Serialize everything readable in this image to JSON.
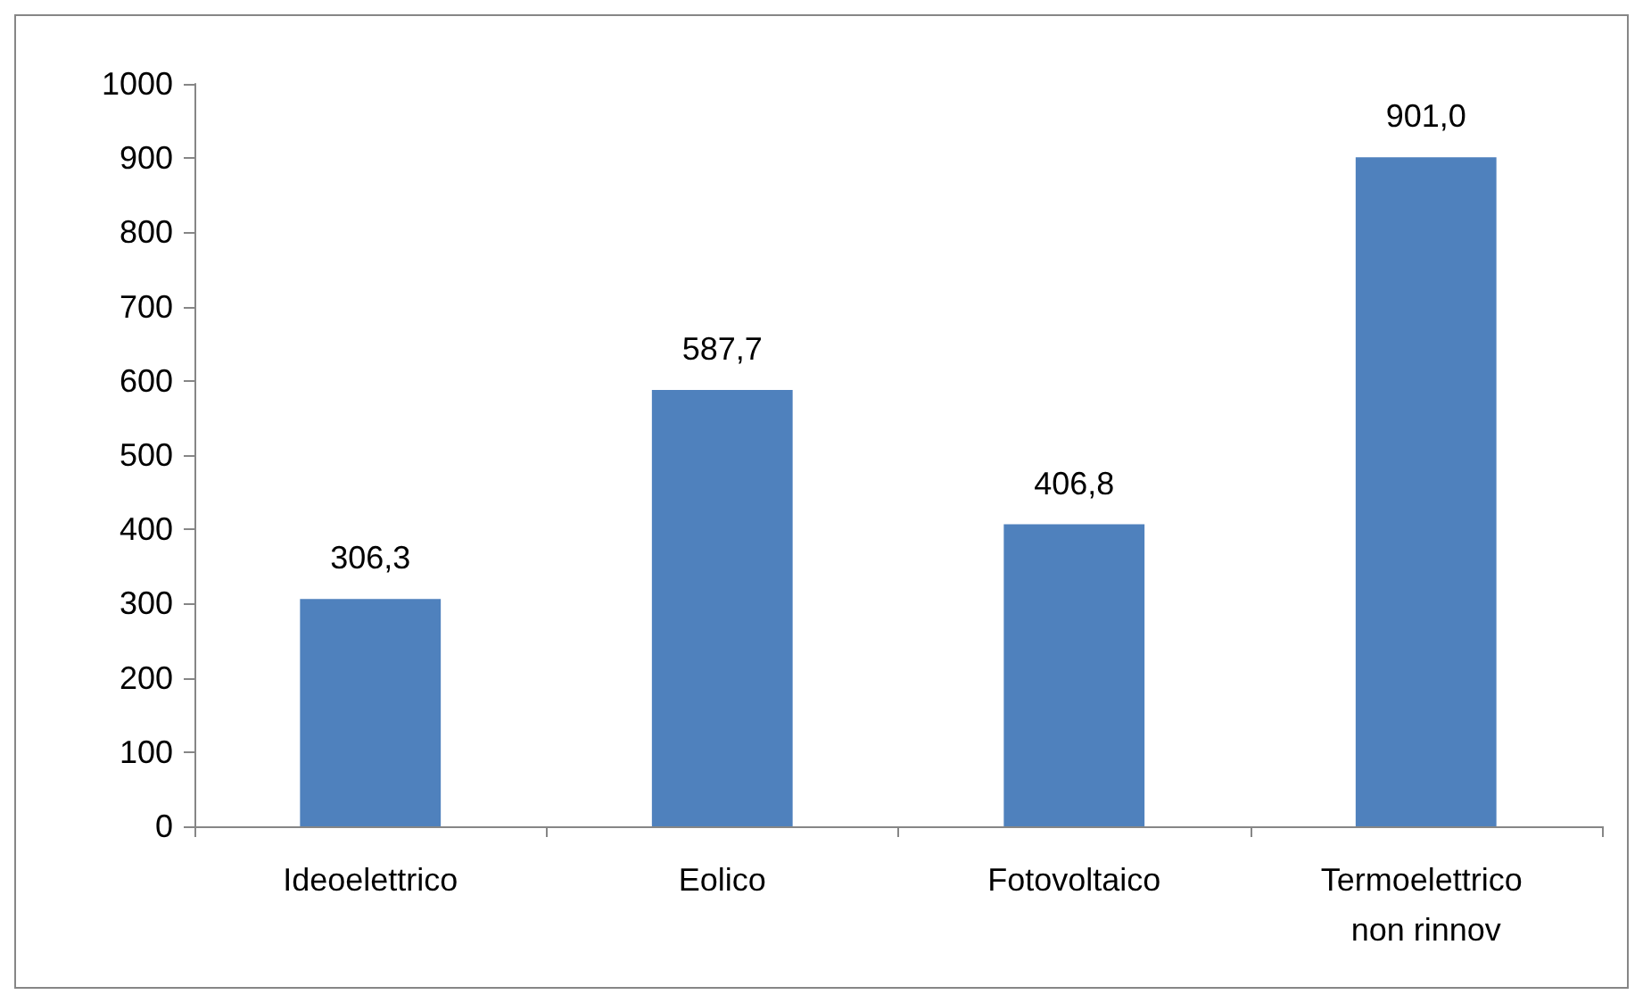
{
  "chart_data": {
    "type": "bar",
    "categories": [
      "Ideoelettrico",
      "Eolico",
      "Fotovoltaico",
      "Termoelettrico non rinnov"
    ],
    "values": [
      306.3,
      587.7,
      406.8,
      901.0
    ],
    "value_labels": [
      "306,3",
      "587,7",
      "406,8",
      "901,0"
    ],
    "color": "#4f81bd",
    "ylim": [
      0,
      1000
    ],
    "yticks": [
      0,
      100,
      200,
      300,
      400,
      500,
      600,
      700,
      800,
      900,
      1000
    ],
    "grid": false
  }
}
